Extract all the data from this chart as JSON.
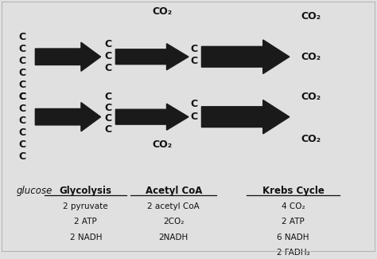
{
  "bg_color": "#f2f2f2",
  "fig_bg": "#e0e0e0",
  "text_color": "#111111",
  "arrow_color": "#1a1a1a",
  "top_left_carbons": [
    "C",
    "C",
    "C",
    "C",
    "C",
    "C"
  ],
  "top_mid1_carbons": [
    "C",
    "C",
    "C"
  ],
  "top_mid2_carbons": [
    "C",
    "C"
  ],
  "top_co2_above": "CO₂",
  "top_co2_right1": "CO₂",
  "top_co2_right2": "CO₂",
  "bot_left_carbons": [
    "C",
    "C",
    "C",
    "C",
    "C",
    "C"
  ],
  "bot_mid1_carbons": [
    "C",
    "C",
    "C",
    "C"
  ],
  "bot_mid2_carbons": [
    "C",
    "C"
  ],
  "bot_co2_below": "CO₂",
  "bot_co2_right1": "CO₂",
  "bot_co2_right2": "CO₂",
  "label_glucose": "glucose",
  "label_glycolysis": "Glycolysis",
  "label_glycolysis_sub": [
    "2 pyruvate",
    "2 ATP",
    "2 NADH"
  ],
  "label_acetyl": "Acetyl CoA",
  "label_acetyl_sub": [
    "2 acetyl CoA",
    "2CO₂",
    "2NADH"
  ],
  "label_krebs": "Krebs Cycle",
  "label_krebs_sub": [
    "4 CO₂",
    "2 ATP",
    "6 NADH",
    "2 FADH₂"
  ]
}
